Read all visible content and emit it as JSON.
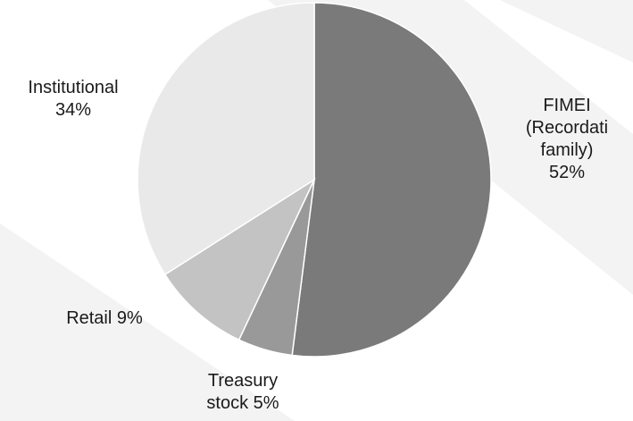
{
  "chart_data": {
    "type": "pie",
    "slices": [
      {
        "name": "FIMEI (Recordati family)",
        "value": 52,
        "color": "#7a7a7a",
        "label_lines": [
          "FIMEI",
          "(Recordati",
          "family)",
          "52%"
        ]
      },
      {
        "name": "Treasury stock",
        "value": 5,
        "color": "#999999",
        "label_lines": [
          "Treasury",
          "stock 5%"
        ]
      },
      {
        "name": "Retail",
        "value": 9,
        "color": "#c3c3c3",
        "label_lines": [
          "Retail 9%"
        ]
      },
      {
        "name": "Institutional",
        "value": 34,
        "color": "#e9e9e9",
        "label_lines": [
          "Institutional",
          "34%"
        ]
      }
    ],
    "start": "12 o'clock",
    "direction": "clockwise"
  },
  "background": {
    "base": "#ffffff",
    "stripe": "#f3f3f3"
  }
}
